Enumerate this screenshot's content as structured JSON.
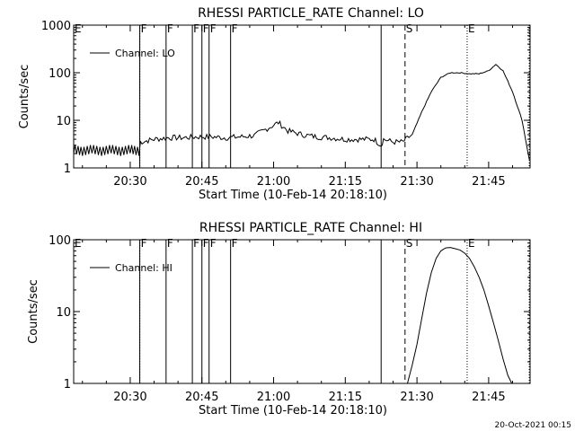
{
  "footer": {
    "timestamp": "20-Oct-2021 00:15"
  },
  "chart_data": [
    {
      "type": "line",
      "title": "RHESSI PARTICLE_RATE Channel: LO",
      "xlabel": "Start Time (10-Feb-14 20:18:10)",
      "ylabel": "Counts/sec",
      "y_scale": "log",
      "xlim": [
        "20:18:10",
        "21:53:40"
      ],
      "ylim": [
        1,
        1000
      ],
      "x_tick_labels": [
        "20:30",
        "20:45",
        "21:00",
        "21:15",
        "21:30",
        "21:45"
      ],
      "y_tick_labels": [
        "1",
        "10",
        "100",
        "1000"
      ],
      "legend": {
        "placement": "top-left",
        "entries": [
          "Channel: LO"
        ]
      },
      "grid": false,
      "markers": [
        {
          "label": "E",
          "time": "20:18:10",
          "style": "dotted"
        },
        {
          "label": "",
          "time": "20:32:00",
          "style": "dotted"
        },
        {
          "label": "F",
          "time": "20:32:00",
          "style": "solid"
        },
        {
          "label": "F",
          "time": "20:37:30",
          "style": "solid"
        },
        {
          "label": "F",
          "time": "20:43:00",
          "style": "solid"
        },
        {
          "label": "F",
          "time": "20:45:00",
          "style": "solid"
        },
        {
          "label": "F",
          "time": "20:46:30",
          "style": "solid"
        },
        {
          "label": "F",
          "time": "20:51:00",
          "style": "solid"
        },
        {
          "label": "",
          "time": "21:22:30",
          "style": "solid"
        },
        {
          "label": "S",
          "time": "21:27:30",
          "style": "dashed"
        },
        {
          "label": "E",
          "time": "21:40:30",
          "style": "dotted"
        },
        {
          "label": "",
          "time": "21:53:30",
          "style": "dotted"
        }
      ],
      "series": [
        {
          "name": "Channel: LO",
          "x": [
            "20:18:10",
            "20:20:00",
            "20:22:00",
            "20:24:00",
            "20:26:00",
            "20:28:00",
            "20:30:00",
            "20:31:50",
            "20:32:10",
            "20:35:00",
            "20:38:00",
            "20:41:00",
            "20:44:00",
            "20:47:00",
            "20:50:00",
            "20:53:00",
            "20:56:00",
            "20:59:00",
            "21:01:00",
            "21:03:00",
            "21:06:00",
            "21:09:00",
            "21:12:00",
            "21:15:00",
            "21:18:00",
            "21:21:00",
            "21:22:30",
            "21:23:00",
            "21:25:00",
            "21:27:00",
            "21:29:00",
            "21:31:00",
            "21:33:00",
            "21:35:00",
            "21:37:00",
            "21:39:00",
            "21:41:00",
            "21:43:00",
            "21:45:00",
            "21:46:30",
            "21:48:00",
            "21:50:00",
            "21:52:00",
            "21:53:30"
          ],
          "values": [
            2.5,
            2.2,
            2.5,
            2.2,
            2.5,
            2.2,
            2.5,
            2.2,
            3.5,
            4.0,
            4.3,
            4.3,
            4.5,
            4.5,
            4.3,
            4.5,
            4.8,
            7.0,
            9.0,
            6.0,
            5.0,
            4.5,
            4.3,
            4.0,
            4.0,
            4.0,
            3.0,
            4.0,
            3.5,
            3.5,
            5.0,
            15,
            40,
            80,
            100,
            100,
            95,
            95,
            110,
            150,
            110,
            40,
            10,
            1.5
          ]
        }
      ]
    },
    {
      "type": "line",
      "title": "RHESSI PARTICLE_RATE Channel: HI",
      "xlabel": "Start Time (10-Feb-14 20:18:10)",
      "ylabel": "Counts/sec",
      "y_scale": "log",
      "xlim": [
        "20:18:10",
        "21:53:40"
      ],
      "ylim": [
        1,
        100
      ],
      "x_tick_labels": [
        "20:30",
        "20:45",
        "21:00",
        "21:15",
        "21:30",
        "21:45"
      ],
      "y_tick_labels": [
        "1",
        "10",
        "100"
      ],
      "legend": {
        "placement": "top-left",
        "entries": [
          "Channel: HI"
        ]
      },
      "grid": false,
      "markers": [
        {
          "label": "E",
          "time": "20:18:10",
          "style": "dotted"
        },
        {
          "label": "",
          "time": "20:32:00",
          "style": "dotted"
        },
        {
          "label": "F",
          "time": "20:32:00",
          "style": "solid"
        },
        {
          "label": "F",
          "time": "20:37:30",
          "style": "solid"
        },
        {
          "label": "F",
          "time": "20:43:00",
          "style": "solid"
        },
        {
          "label": "F",
          "time": "20:45:00",
          "style": "solid"
        },
        {
          "label": "F",
          "time": "20:46:30",
          "style": "solid"
        },
        {
          "label": "F",
          "time": "20:51:00",
          "style": "solid"
        },
        {
          "label": "",
          "time": "21:22:30",
          "style": "solid"
        },
        {
          "label": "S",
          "time": "21:27:30",
          "style": "dashed"
        },
        {
          "label": "E",
          "time": "21:40:30",
          "style": "dotted"
        },
        {
          "label": "",
          "time": "21:53:30",
          "style": "dotted"
        }
      ],
      "series": [
        {
          "name": "Channel: HI",
          "x": [
            "21:28:00",
            "21:29:00",
            "21:30:00",
            "21:31:00",
            "21:32:00",
            "21:33:00",
            "21:34:00",
            "21:35:00",
            "21:36:00",
            "21:37:00",
            "21:38:00",
            "21:39:00",
            "21:40:00",
            "21:41:00",
            "21:42:00",
            "21:43:00",
            "21:44:00",
            "21:45:00",
            "21:46:00",
            "21:47:00",
            "21:48:00",
            "21:49:00",
            "21:49:50"
          ],
          "values": [
            1.0,
            1.8,
            3.5,
            8,
            18,
            35,
            55,
            70,
            77,
            78,
            75,
            72,
            65,
            55,
            42,
            30,
            20,
            12,
            7,
            4,
            2.2,
            1.3,
            1.0
          ]
        }
      ]
    }
  ]
}
